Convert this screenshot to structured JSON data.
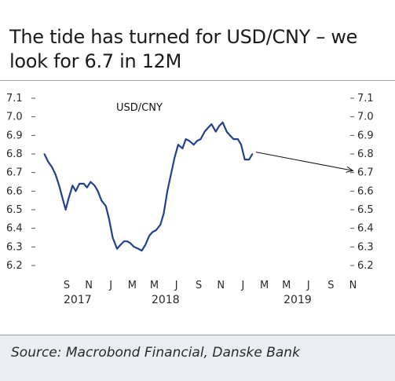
{
  "title": "The tide has turned for USD/CNY – we look for 6.7 in 12M",
  "source": "Source: Macrobond Financial, Danske Bank",
  "colors": {
    "line": "#23408e",
    "arrow": "#111111",
    "text": "#2a2a2a",
    "source_bg": "#eaeef2"
  },
  "chart_data": {
    "type": "line",
    "title": "The tide has turned for USD/CNY – we look for 6.7 in 12M",
    "xlabel": "",
    "ylabel": "",
    "ylim": [
      6.2,
      7.1
    ],
    "y_ticks": [
      "6.2",
      "6.3",
      "6.4",
      "6.5",
      "6.6",
      "6.7",
      "6.8",
      "6.9",
      "7.0",
      "7.1"
    ],
    "y_axis_sides": [
      "left",
      "right"
    ],
    "x_tick_labels": [
      "S",
      "N",
      "J",
      "M",
      "M",
      "J",
      "S",
      "N",
      "J",
      "M",
      "M",
      "J",
      "S",
      "N"
    ],
    "x_year_labels": [
      {
        "label": "2017",
        "month": "2017-10"
      },
      {
        "label": "2018",
        "month": "2018-06"
      },
      {
        "label": "2019",
        "month": "2019-06"
      }
    ],
    "x_range": [
      "2017-07",
      "2019-11"
    ],
    "grid": false,
    "series": [
      {
        "name": "USD/CNY",
        "x": [
          "2017-07-15",
          "2017-07-25",
          "2017-08-05",
          "2017-08-15",
          "2017-08-25",
          "2017-09-05",
          "2017-09-12",
          "2017-09-20",
          "2017-10-01",
          "2017-10-10",
          "2017-10-20",
          "2017-11-01",
          "2017-11-10",
          "2017-11-20",
          "2017-12-01",
          "2017-12-10",
          "2017-12-20",
          "2018-01-01",
          "2018-01-10",
          "2018-01-20",
          "2018-02-01",
          "2018-02-10",
          "2018-02-20",
          "2018-03-01",
          "2018-03-10",
          "2018-03-20",
          "2018-04-01",
          "2018-04-10",
          "2018-04-20",
          "2018-05-01",
          "2018-05-10",
          "2018-05-20",
          "2018-06-01",
          "2018-06-10",
          "2018-06-20",
          "2018-07-01",
          "2018-07-10",
          "2018-07-20",
          "2018-08-01",
          "2018-08-10",
          "2018-08-20",
          "2018-09-01",
          "2018-09-10",
          "2018-09-20",
          "2018-10-01",
          "2018-10-10",
          "2018-10-20",
          "2018-11-01",
          "2018-11-10",
          "2018-11-20",
          "2018-12-01",
          "2018-12-10",
          "2018-12-20",
          "2019-01-01",
          "2019-01-10",
          "2019-01-20",
          "2019-02-01",
          "2019-02-10"
        ],
        "values": [
          6.8,
          6.76,
          6.73,
          6.69,
          6.63,
          6.55,
          6.5,
          6.56,
          6.63,
          6.6,
          6.64,
          6.64,
          6.62,
          6.65,
          6.63,
          6.6,
          6.55,
          6.52,
          6.45,
          6.35,
          6.29,
          6.31,
          6.33,
          6.33,
          6.32,
          6.3,
          6.29,
          6.28,
          6.31,
          6.36,
          6.38,
          6.39,
          6.42,
          6.48,
          6.6,
          6.7,
          6.78,
          6.85,
          6.83,
          6.88,
          6.87,
          6.85,
          6.87,
          6.88,
          6.92,
          6.94,
          6.96,
          6.92,
          6.95,
          6.97,
          6.92,
          6.9,
          6.88,
          6.88,
          6.85,
          6.77,
          6.77,
          6.8
        ]
      }
    ],
    "forecast": {
      "from": {
        "x": "2019-02-20",
        "y": 6.81
      },
      "to": {
        "x": "2019-11-15",
        "y": 6.71
      }
    },
    "annotation": "USD/CNY"
  }
}
